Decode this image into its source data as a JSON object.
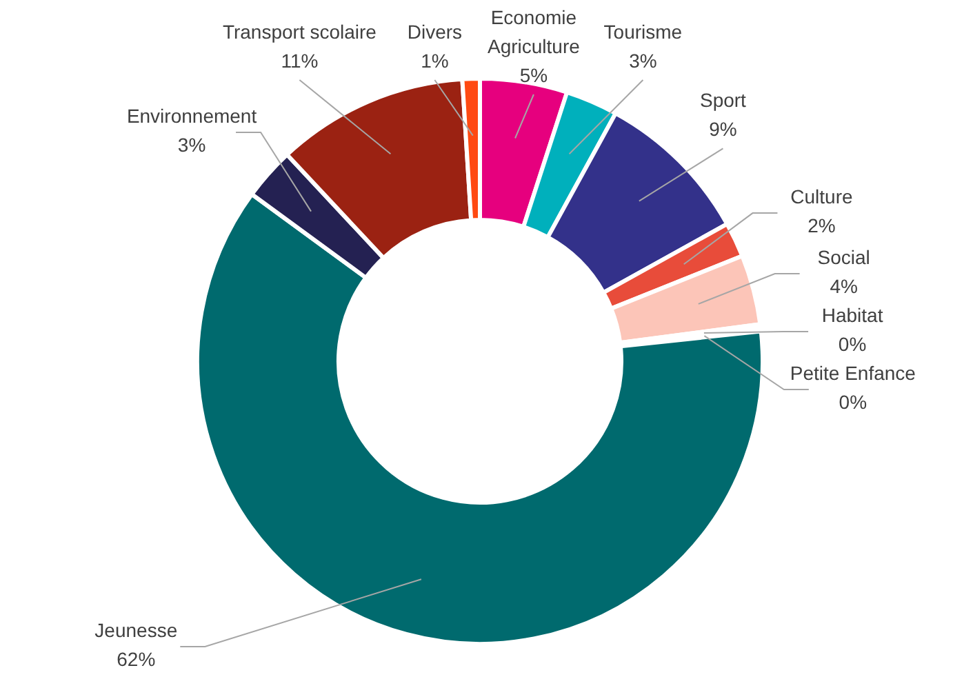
{
  "chart_data": {
    "type": "donut",
    "categories": [
      "Economie Agriculture",
      "Tourisme",
      "Sport",
      "Culture",
      "Social",
      "Habitat",
      "Petite Enfance",
      "Jeunesse",
      "Environnement",
      "Transport scolaire",
      "Divers"
    ],
    "values": [
      5,
      3,
      9,
      2,
      4,
      0.2,
      0.2,
      62,
      3,
      11,
      1
    ],
    "value_labels": [
      "5%",
      "3%",
      "9%",
      "2%",
      "4%",
      "0%",
      "0%",
      "62%",
      "3%",
      "11%",
      "1%"
    ],
    "colors": [
      "#e6007e",
      "#00b0bc",
      "#33318a",
      "#e84c3a",
      "#fcc5b8",
      "#c0208a",
      "#f4e6f0",
      "#006a6e",
      "#242152",
      "#9b2212",
      "#ff4a12"
    ]
  }
}
